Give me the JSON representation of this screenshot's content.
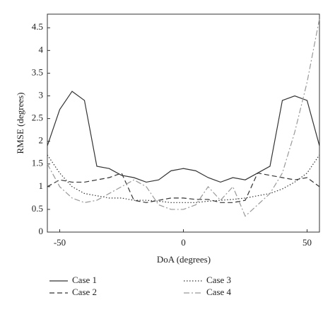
{
  "chart_data": {
    "type": "line",
    "x_label": "DoA (degrees)",
    "y_label": "RMSE (degrees)",
    "x": [
      -55,
      -50,
      -45,
      -40,
      -35,
      -30,
      -25,
      -20,
      -15,
      -10,
      -5,
      0,
      5,
      10,
      15,
      20,
      25,
      30,
      35,
      40,
      45,
      50,
      55
    ],
    "series": [
      {
        "name": "Case 1",
        "color": "#333333",
        "dash": "solid",
        "values": [
          1.9,
          2.7,
          3.1,
          2.9,
          1.45,
          1.4,
          1.25,
          1.2,
          1.1,
          1.15,
          1.35,
          1.4,
          1.35,
          1.2,
          1.1,
          1.2,
          1.15,
          1.3,
          1.45,
          2.9,
          3.0,
          2.9,
          1.9
        ]
      },
      {
        "name": "Case 2",
        "color": "#333333",
        "dash": "dashed",
        "values": [
          1.0,
          1.15,
          1.1,
          1.1,
          1.15,
          1.2,
          1.3,
          0.7,
          0.65,
          0.7,
          0.75,
          0.75,
          0.72,
          0.72,
          0.65,
          0.65,
          0.7,
          1.3,
          1.25,
          1.2,
          1.15,
          1.2,
          1.0
        ]
      },
      {
        "name": "Case 3",
        "color": "#333333",
        "dash": "dotted",
        "values": [
          1.7,
          1.3,
          1.0,
          0.85,
          0.8,
          0.75,
          0.75,
          0.7,
          0.7,
          0.68,
          0.65,
          0.65,
          0.65,
          0.68,
          0.7,
          0.72,
          0.75,
          0.8,
          0.85,
          0.95,
          1.1,
          1.3,
          1.7
        ]
      },
      {
        "name": "Case 4",
        "color": "#999999",
        "dash": "dashdot",
        "values": [
          1.5,
          1.0,
          0.75,
          0.65,
          0.7,
          0.85,
          1.0,
          1.15,
          1.0,
          0.6,
          0.5,
          0.5,
          0.6,
          1.0,
          0.7,
          1.0,
          0.35,
          0.6,
          0.85,
          1.3,
          2.2,
          3.3,
          4.7
        ]
      }
    ],
    "xlim": [
      -55,
      55
    ],
    "ylim": [
      0,
      4.8
    ],
    "xticks": [
      -50,
      0,
      50
    ],
    "yticks": [
      0,
      0.5,
      1,
      1.5,
      2,
      2.5,
      3,
      3.5,
      4,
      4.5
    ],
    "grid": false,
    "legend": "bottom"
  }
}
